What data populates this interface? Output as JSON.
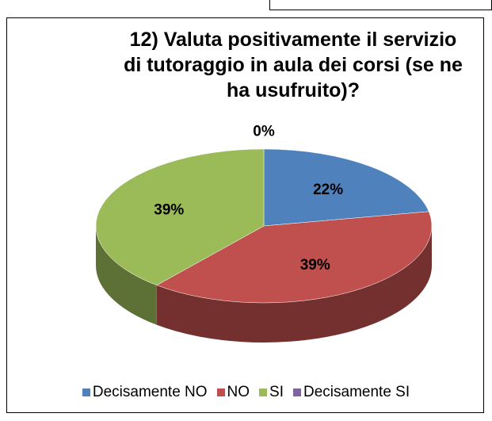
{
  "chart_data": {
    "type": "pie",
    "title": "12) Valuta positivamente il servizio di tutoraggio in aula dei corsi (se ne ha usufruito)?",
    "categories": [
      "Decisamente NO",
      "NO",
      "SI",
      "Decisamente SI"
    ],
    "values": [
      22,
      39,
      39,
      0
    ],
    "value_labels": [
      "22%",
      "39%",
      "39%",
      "0%"
    ],
    "colors": [
      "#4f81bd",
      "#c0504d",
      "#9bbb59",
      "#8064a2"
    ],
    "legend": "bottom"
  }
}
